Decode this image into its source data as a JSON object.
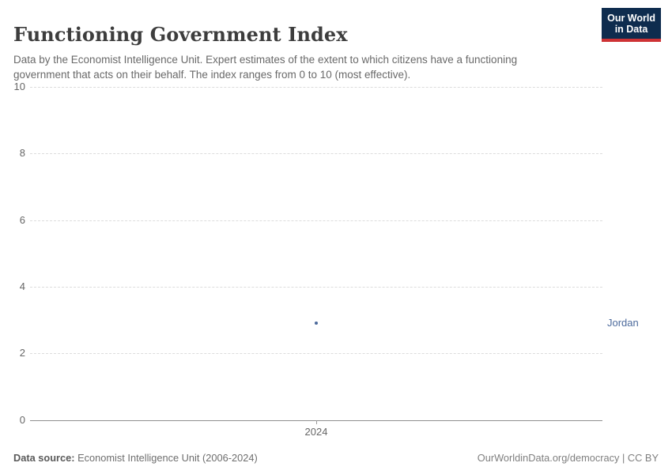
{
  "header": {
    "title": "Functioning Government Index",
    "subtitle": "Data by the Economist Intelligence Unit. Expert estimates of the extent to which citizens have a functioning government that acts on their behalf. The index ranges from 0 to 10 (most effective).",
    "logo": {
      "line1": "Our World",
      "line2": "in Data",
      "bg_color": "#0e2c4e",
      "accent_color": "#ce3235"
    }
  },
  "chart_data": {
    "type": "scatter",
    "title": "Functioning Government Index",
    "x": [
      2024
    ],
    "series": [
      {
        "name": "Jordan",
        "values": [
          2.9
        ],
        "color": "#4C6A9C"
      }
    ],
    "xlabel": "",
    "ylabel": "",
    "ylim": [
      0,
      10
    ],
    "yticks": [
      0,
      2,
      4,
      6,
      8,
      10
    ],
    "xticks": [
      "2024"
    ],
    "grid": "horizontal-dashed",
    "legend_position": "right-of-plot",
    "entity_labels": [
      "Jordan"
    ]
  },
  "footer": {
    "source_label": "Data source:",
    "source_value": "Economist Intelligence Unit (2006-2024)",
    "credit": "OurWorldinData.org/democracy | CC BY"
  }
}
